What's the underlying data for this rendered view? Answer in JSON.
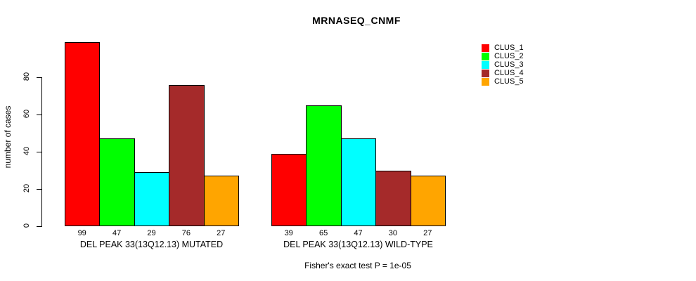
{
  "title": "MRNASEQ_CNMF",
  "chart_data": {
    "type": "bar",
    "title": "MRNASEQ_CNMF",
    "xlabel": "",
    "ylabel": "number of cases",
    "ylim": [
      0,
      80
    ],
    "yticks": [
      0,
      20,
      40,
      60,
      80
    ],
    "grid": false,
    "legend_position": "right-outside",
    "categories": [
      "DEL PEAK 33(13Q12.13) MUTATED",
      "DEL PEAK 33(13Q12.13) WILD-TYPE"
    ],
    "series": [
      {
        "name": "CLUS_1",
        "color": "#FF0000",
        "values": [
          99,
          39
        ]
      },
      {
        "name": "CLUS_2",
        "color": "#00FF00",
        "values": [
          47,
          65
        ]
      },
      {
        "name": "CLUS_3",
        "color": "#00FFFF",
        "values": [
          29,
          47
        ]
      },
      {
        "name": "CLUS_4",
        "color": "#A52A2A",
        "values": [
          76,
          30
        ]
      },
      {
        "name": "CLUS_5",
        "color": "#FFA500",
        "values": [
          27,
          27
        ]
      }
    ],
    "bar_value_labels_shown": true,
    "annotation": "Fisher's exact test P = 1e-05"
  }
}
